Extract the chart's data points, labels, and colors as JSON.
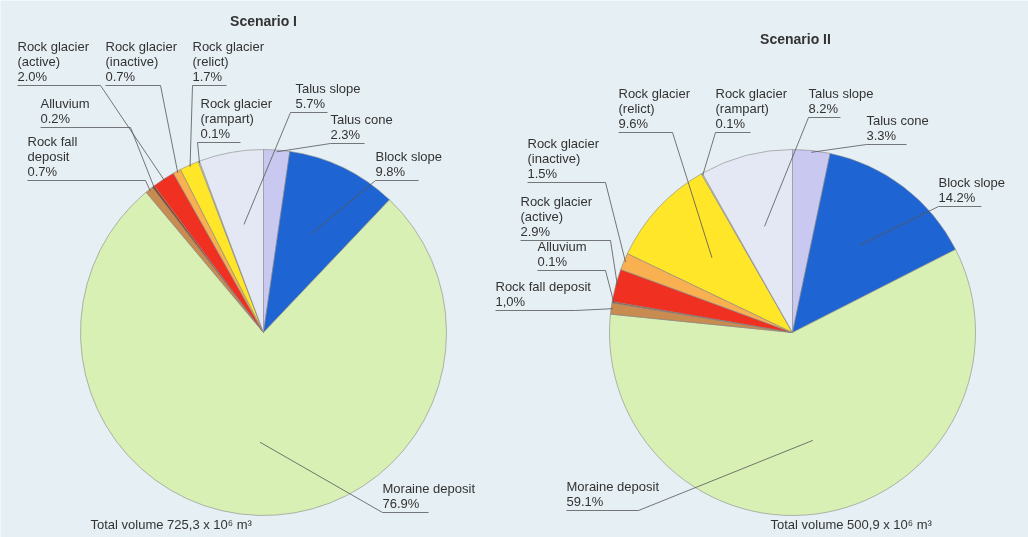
{
  "chart_data": [
    {
      "type": "pie",
      "title": "Scenario I",
      "categories": [
        "Talus cone",
        "Block slope",
        "Moraine deposit",
        "Rock fall deposit",
        "Alluvium",
        "Rock glacier (active)",
        "Rock glacier (inactive)",
        "Rock glacier (relict)",
        "Rock glacier (rampart)",
        "Talus slope"
      ],
      "values": [
        2.3,
        9.8,
        76.9,
        0.7,
        0.2,
        2.0,
        0.7,
        1.7,
        0.1,
        5.7
      ],
      "value_labels": [
        "2.3%",
        "9.8%",
        "76.9%",
        "0.7%",
        "0.2%",
        "2.0%",
        "0.7%",
        "1.7%",
        "0.1%",
        "5.7%"
      ],
      "colors": [
        "#c8c8f0",
        "#1e64d2",
        "#d8f0b4",
        "#c88c50",
        "#8c4020",
        "#f03020",
        "#f8b050",
        "#ffe628",
        "#f0f0b0",
        "#e4e8f4"
      ],
      "annotations": [
        "Total volume 725,3 x 10⁶ m³"
      ]
    },
    {
      "type": "pie",
      "title": "Scenario II",
      "categories": [
        "Talus cone",
        "Block slope",
        "Moraine deposit",
        "Rock fall deposit",
        "Alluvium",
        "Rock glacier (active)",
        "Rock glacier (inactive)",
        "Rock glacier (relict)",
        "Rock glacier (rampart)",
        "Talus slope"
      ],
      "values": [
        3.3,
        14.2,
        59.1,
        1.0,
        0.1,
        2.9,
        1.5,
        9.6,
        0.1,
        8.2
      ],
      "value_labels": [
        "3.3%",
        "14.2%",
        "59.1%",
        "1,0%",
        "0.1%",
        "2.9%",
        "1.5%",
        "9.6%",
        "0.1%",
        "8.2%"
      ],
      "colors": [
        "#c8c8f0",
        "#1e64d2",
        "#d8f0b4",
        "#c88c50",
        "#8c4020",
        "#f03020",
        "#f8b050",
        "#ffe628",
        "#f0f0b0",
        "#e4e8f4"
      ],
      "annotations": [
        "Total volume 500,9 x 10⁶ m³"
      ]
    }
  ]
}
